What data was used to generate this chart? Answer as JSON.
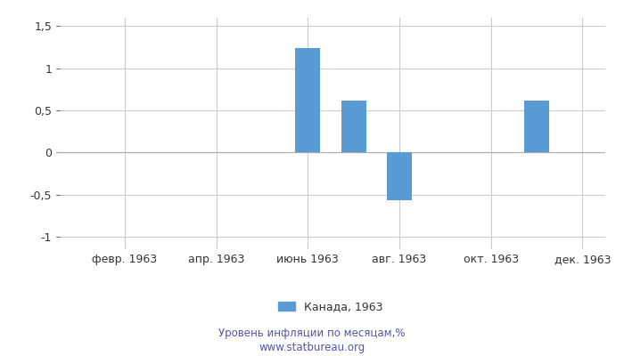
{
  "months": [
    1,
    2,
    3,
    4,
    5,
    6,
    7,
    8,
    9,
    10,
    11,
    12
  ],
  "values": [
    0.0,
    0.0,
    0.0,
    0.0,
    0.0,
    1.24,
    0.62,
    -0.57,
    0.0,
    0.0,
    0.62,
    0.0
  ],
  "bar_color": "#5B9BD5",
  "xlabel_ticks": [
    2,
    4,
    6,
    8,
    10,
    12
  ],
  "xlabel_labels": [
    "февр. 1963",
    "апр. 1963",
    "июнь 1963",
    "авг. 1963",
    "окт. 1963",
    "дек. 1963"
  ],
  "ylim": [
    -1.15,
    1.6
  ],
  "yticks": [
    -1.0,
    -0.5,
    0.0,
    0.5,
    1.0,
    1.5
  ],
  "ytick_labels": [
    "-1",
    "-0,5",
    "0",
    "0,5",
    "1",
    "1,5"
  ],
  "legend_label": "Канада, 1963",
  "footnote_line1": "Уровень инфляции по месяцам,%",
  "footnote_line2": "www.statbureau.org",
  "grid_color": "#cccccc",
  "background_color": "#ffffff",
  "bar_width": 0.55
}
